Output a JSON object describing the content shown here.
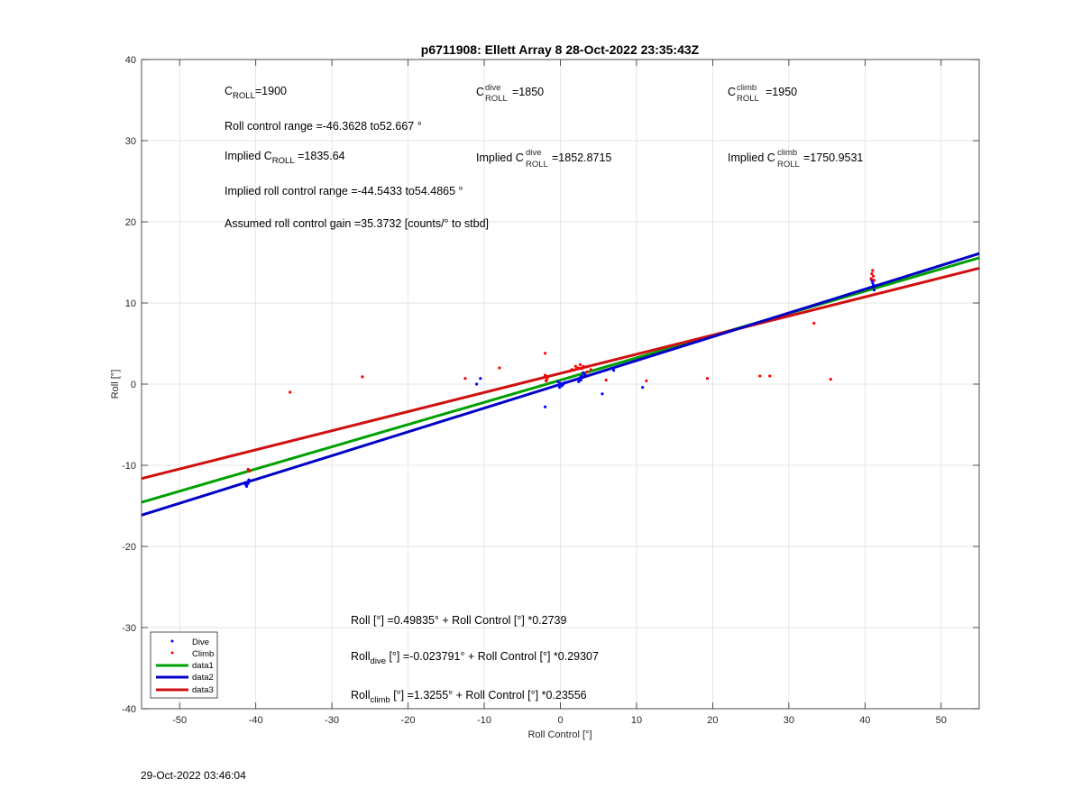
{
  "timestamp": "29-Oct-2022 03:46:04",
  "chart_data": {
    "type": "scatter",
    "title": "p6711908: Ellett Array 8 28-Oct-2022 23:35:43Z",
    "xlabel": "Roll Control [°]",
    "ylabel": "Roll [°]",
    "xlim": [
      -55,
      55
    ],
    "ylim": [
      -40,
      40
    ],
    "xticks": [
      -50,
      -40,
      -30,
      -20,
      -10,
      0,
      10,
      20,
      30,
      40,
      50
    ],
    "yticks": [
      -40,
      -30,
      -20,
      -10,
      0,
      10,
      20,
      30,
      40
    ],
    "grid": true,
    "legend_placement": "bottom-left",
    "series": [
      {
        "name": "Dive",
        "kind": "points",
        "color": "#0000ff",
        "points": [
          [
            -41.2,
            -12.6
          ],
          [
            -41.1,
            -12.3
          ],
          [
            -41.0,
            -12.0
          ],
          [
            -40.9,
            -11.8
          ],
          [
            -41.3,
            -12.4
          ],
          [
            -41.0,
            -12.2
          ],
          [
            -11.0,
            0.0
          ],
          [
            -10.5,
            0.7
          ],
          [
            -2.0,
            -2.8
          ],
          [
            -0.2,
            -0.1
          ],
          [
            -0.3,
            0.3
          ],
          [
            -0.1,
            -0.4
          ],
          [
            0.0,
            0.1
          ],
          [
            0.2,
            -0.2
          ],
          [
            0.4,
            0.0
          ],
          [
            0.6,
            0.2
          ],
          [
            2.4,
            0.3
          ],
          [
            2.5,
            0.6
          ],
          [
            2.6,
            0.8
          ],
          [
            2.7,
            0.5
          ],
          [
            2.8,
            1.0
          ],
          [
            3.0,
            1.4
          ],
          [
            3.2,
            1.2
          ],
          [
            5.5,
            -1.2
          ],
          [
            7.0,
            1.7
          ],
          [
            10.8,
            -0.4
          ],
          [
            40.9,
            12.8
          ],
          [
            41.1,
            12.2
          ],
          [
            41.2,
            11.6
          ],
          [
            41.0,
            12.5
          ]
        ]
      },
      {
        "name": "Climb",
        "kind": "points",
        "color": "#ff0000",
        "points": [
          [
            -41.0,
            -10.5
          ],
          [
            -40.8,
            -10.7
          ],
          [
            -35.5,
            -1.0
          ],
          [
            -26.0,
            0.9
          ],
          [
            -12.5,
            0.7
          ],
          [
            -8.0,
            2.0
          ],
          [
            -2.0,
            3.8
          ],
          [
            -1.9,
            1.0
          ],
          [
            -1.8,
            0.5
          ],
          [
            -1.7,
            0.8
          ],
          [
            -2.0,
            1.1
          ],
          [
            -1.9,
            0.4
          ],
          [
            1.5,
            1.8
          ],
          [
            2.0,
            2.2
          ],
          [
            2.3,
            2.0
          ],
          [
            2.6,
            2.4
          ],
          [
            2.8,
            1.9
          ],
          [
            3.0,
            2.2
          ],
          [
            3.5,
            1.5
          ],
          [
            4.0,
            1.8
          ],
          [
            6.0,
            0.5
          ],
          [
            11.3,
            0.4
          ],
          [
            19.3,
            0.7
          ],
          [
            26.2,
            1.0
          ],
          [
            27.5,
            1.0
          ],
          [
            33.3,
            7.5
          ],
          [
            35.5,
            0.6
          ],
          [
            40.8,
            13.0
          ],
          [
            40.9,
            13.6
          ],
          [
            41.0,
            14.0
          ],
          [
            41.1,
            13.3
          ],
          [
            41.2,
            12.8
          ]
        ]
      },
      {
        "name": "data1",
        "kind": "line",
        "color": "#00a000",
        "intercept": 0.49835,
        "slope": 0.2739
      },
      {
        "name": "data2",
        "kind": "line",
        "color": "#0000c8",
        "intercept": -0.023791,
        "slope": 0.29307
      },
      {
        "name": "data3",
        "kind": "line",
        "color": "#d01010",
        "intercept": 1.3255,
        "slope": 0.23556
      }
    ],
    "annotations": {
      "c_roll": "=1900",
      "c_roll_dive": "=1850",
      "c_roll_climb": "=1950",
      "roll_control_range": "Roll control range =-46.3628 to52.667 °",
      "implied_c_roll": "=1835.64",
      "implied_c_roll_dive": "=1852.8715",
      "implied_c_roll_climb": "=1750.9531",
      "implied_roll_control_range": "Implied roll control range =-44.5433 to54.4865 °",
      "assumed_gain": "Assumed roll control gain =35.3732 [counts/° to stbd]",
      "fit_all": "Roll [°] =0.49835° + Roll Control [°] *0.2739",
      "fit_dive_rest": " [°] =-0.023791° + Roll Control [°] *0.29307",
      "fit_climb_rest": " [°] =1.3255° + Roll Control [°] *0.23556"
    }
  }
}
